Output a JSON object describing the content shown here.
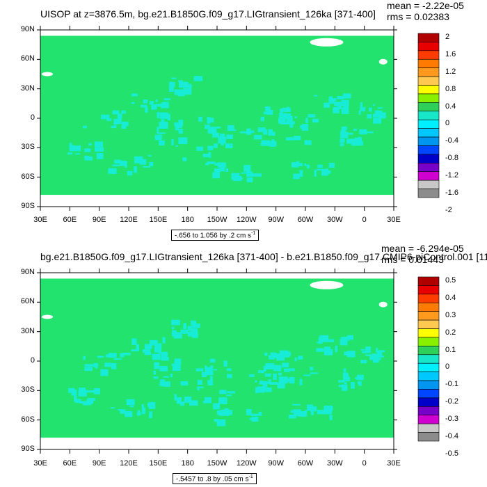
{
  "panels": [
    {
      "title": "UISOP at z=3876.5m, bg.e21.B1850G.f09_g17.LIGtransient_126ka [371-400]",
      "mean": "mean = -2.22e-05",
      "rms": "rms = 0.02383",
      "range_label": "-.656 to 1.056 by .2 cm s",
      "range_exp": "-1",
      "colorbar_labels": [
        "2",
        "1.6",
        "1.2",
        "0.8",
        "0.4",
        "0",
        "-0.4",
        "-0.8",
        "-1.2",
        "-1.6",
        "-2"
      ]
    },
    {
      "title": "bg.e21.B1850G.f09_g17.LIGtransient_126ka [371-400] - b.e21.B1850.f09_g17.CMIP6-piControl.001 [11",
      "mean": "mean = -6.294e-05",
      "rms": "rms = 0.01443",
      "range_label": "-.5457 to .8 by .05 cm s",
      "range_exp": "-1",
      "colorbar_labels": [
        "0.5",
        "0.4",
        "0.3",
        "0.2",
        "0.1",
        "0",
        "-0.1",
        "-0.2",
        "-0.3",
        "-0.4",
        "-0.5"
      ]
    }
  ],
  "lat_labels": [
    "90N",
    "60N",
    "30N",
    "0",
    "30S",
    "60S",
    "90S"
  ],
  "lon_labels": [
    "30E",
    "60E",
    "90E",
    "120E",
    "150E",
    "180",
    "150W",
    "120W",
    "90W",
    "60W",
    "30W",
    "0",
    "30E"
  ],
  "colors": {
    "field_green": "#22e36e",
    "cyan": "#19ecd6",
    "missing": "#ffffff"
  },
  "colorbar_colors": [
    "#b00000",
    "#e80000",
    "#ff3c00",
    "#ff7a00",
    "#ff9a1e",
    "#ffc850",
    "#ffff00",
    "#88f000",
    "#2ed05a",
    "#18e6c8",
    "#00f0ff",
    "#00c8ff",
    "#0096f0",
    "#0046ff",
    "#0000c8",
    "#7800c8",
    "#d000d0",
    "#c8c8c8",
    "#8c8c8c"
  ]
}
